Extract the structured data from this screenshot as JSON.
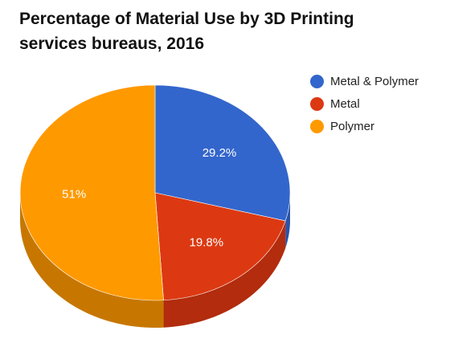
{
  "chart_data": {
    "type": "pie",
    "title_line1": "Percentage of Material Use by 3D Printing",
    "title_line2": "services bureaus, 2016",
    "slices": [
      {
        "name": "Metal & Polymer",
        "value": 29.2,
        "label": "29.2%",
        "color": "#3366cc",
        "side_color": "#2a52a8"
      },
      {
        "name": "Metal",
        "value": 19.8,
        "label": "19.8%",
        "color": "#dc3912",
        "side_color": "#b22c0d"
      },
      {
        "name": "Polymer",
        "value": 51,
        "label": "51%",
        "color": "#ff9900",
        "side_color": "#c77700"
      }
    ],
    "legend_position": "right",
    "three_d": true
  }
}
